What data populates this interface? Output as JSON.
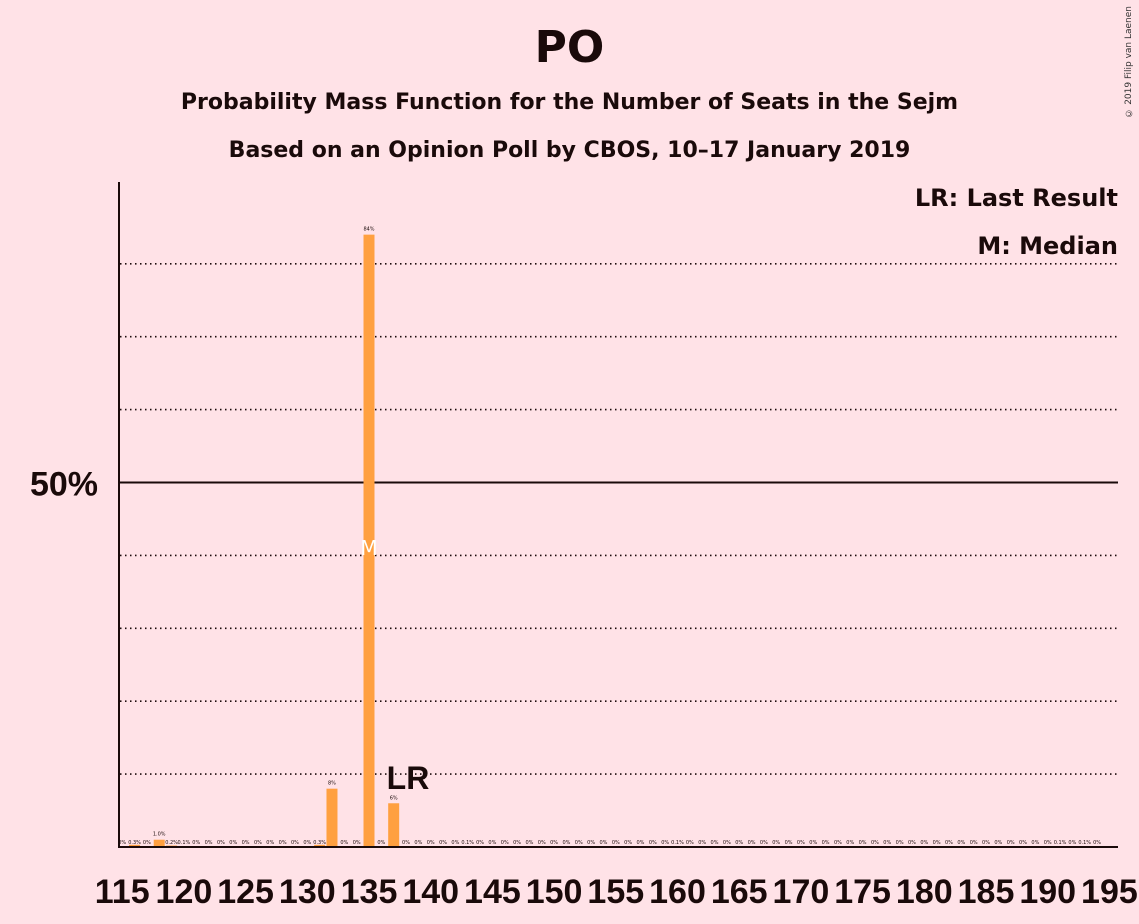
{
  "title": "PO",
  "subtitle1": "Probability Mass Function for the Number of Seats in the Sejm",
  "subtitle2": "Based on an Opinion Poll by CBOS, 10–17 January 2019",
  "copyright": "© 2019 Filip van Laenen",
  "legend": {
    "lr": "LR: Last Result",
    "median": "M: Median"
  },
  "colors": {
    "bar": "#ffa040",
    "background": "#ffe2e7",
    "text": "#1a0a0a"
  },
  "chart_data": {
    "type": "bar",
    "x": [
      115,
      116,
      117,
      118,
      119,
      120,
      121,
      122,
      123,
      124,
      125,
      126,
      127,
      128,
      129,
      130,
      131,
      132,
      133,
      134,
      135,
      136,
      137,
      138,
      139,
      140,
      141,
      142,
      143,
      144,
      145,
      146,
      147,
      148,
      149,
      150,
      151,
      152,
      153,
      154,
      155,
      156,
      157,
      158,
      159,
      160,
      161,
      162,
      163,
      164,
      165,
      166,
      167,
      168,
      169,
      170,
      171,
      172,
      173,
      174,
      175,
      176,
      177,
      178,
      179,
      180,
      181,
      182,
      183,
      184,
      185,
      186,
      187,
      188,
      189,
      190,
      191,
      192,
      193,
      194
    ],
    "values": [
      0,
      0.3,
      0,
      1.0,
      0.2,
      0.1,
      0,
      0,
      0,
      0,
      0,
      0,
      0,
      0,
      0,
      0,
      0.3,
      8,
      0,
      0,
      84,
      0,
      6,
      0,
      0,
      0,
      0,
      0,
      0.1,
      0,
      0,
      0,
      0,
      0,
      0,
      0,
      0,
      0,
      0,
      0,
      0,
      0,
      0,
      0,
      0,
      0.1,
      0,
      0,
      0,
      0,
      0,
      0,
      0,
      0,
      0,
      0,
      0,
      0,
      0,
      0,
      0,
      0,
      0,
      0,
      0,
      0,
      0,
      0,
      0,
      0,
      0,
      0,
      0,
      0,
      0,
      0,
      0.1,
      0,
      0.1,
      0
    ],
    "value_labels": [
      "0%",
      "0.3%",
      "0%",
      "1.0%",
      "0.2%",
      "0.1%",
      "0%",
      "0%",
      "0%",
      "0%",
      "0%",
      "0%",
      "0%",
      "0%",
      "0%",
      "0%",
      "0.3%",
      "8%",
      "0%",
      "0%",
      "84%",
      "0%",
      "6%",
      "0%",
      "0%",
      "0%",
      "0%",
      "0%",
      "0.1%",
      "0%",
      "0%",
      "0%",
      "0%",
      "0%",
      "0%",
      "0%",
      "0%",
      "0%",
      "0%",
      "0%",
      "0%",
      "0%",
      "0%",
      "0%",
      "0%",
      "0.1%",
      "0%",
      "0%",
      "0%",
      "0%",
      "0%",
      "0%",
      "0%",
      "0%",
      "0%",
      "0%",
      "0%",
      "0%",
      "0%",
      "0%",
      "0%",
      "0%",
      "0%",
      "0%",
      "0%",
      "0%",
      "0%",
      "0%",
      "0%",
      "0%",
      "0%",
      "0%",
      "0%",
      "0%",
      "0%",
      "0%",
      "0.1%",
      "0%",
      "0.1%",
      "0%"
    ],
    "x_tick_labels": [
      "115",
      "120",
      "125",
      "130",
      "135",
      "140",
      "145",
      "150",
      "155",
      "160",
      "165",
      "170",
      "175",
      "180",
      "185",
      "190",
      "195"
    ],
    "y_tick_labels": [
      "50%"
    ],
    "ylim": [
      0,
      90
    ],
    "gridlines_dotted": [
      10,
      20,
      30,
      40,
      60,
      70,
      80
    ],
    "gridline_solid": 50,
    "last_result_seat": 137,
    "last_result_label": "LR",
    "median_seat": 135,
    "median_label": "M",
    "legend_position": "top-right"
  }
}
